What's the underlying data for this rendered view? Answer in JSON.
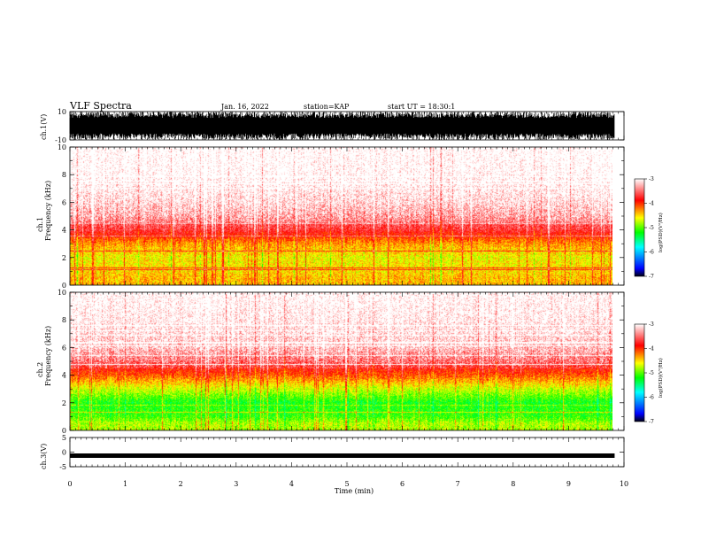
{
  "header": {
    "title": "VLF Spectra",
    "date": "Jan. 16, 2022",
    "station": "station=KAP",
    "start": "start UT = 18:30:1"
  },
  "chart_data": [
    {
      "type": "line",
      "panel": "ch1-waveform",
      "ylabel": "ch.1(V)",
      "y_ticks": [
        "10",
        "-10"
      ],
      "ylim": [
        -10,
        10
      ],
      "xlim": [
        0,
        10
      ],
      "data_xmax": 9.83,
      "description_values": "dense waveform saturating between -10 and 10 V"
    },
    {
      "type": "heatmap",
      "panel": "ch1-spectrogram",
      "ylabel": "ch.1 Frequency (kHz)",
      "y_ticks": [
        "0",
        "2",
        "4",
        "6",
        "8",
        "10"
      ],
      "ylim": [
        0,
        10
      ],
      "xlim": [
        0,
        10
      ],
      "data_xmax": 9.83,
      "band_profile_khz": [
        [
          0.5,
          -4.4
        ],
        [
          1,
          -4.5
        ],
        [
          2,
          -4.6
        ],
        [
          3,
          -4.3
        ],
        [
          4,
          -3.7
        ],
        [
          5,
          -3.4
        ],
        [
          6,
          -3.2
        ],
        [
          8,
          -3.0
        ],
        [
          10,
          -2.95
        ]
      ]
    },
    {
      "type": "heatmap",
      "panel": "ch2-spectrogram",
      "ylabel": "ch.2 Frequency (kHz)",
      "y_ticks": [
        "0",
        "2",
        "4",
        "6",
        "8",
        "10"
      ],
      "ylim": [
        0,
        10
      ],
      "xlim": [
        0,
        10
      ],
      "data_xmax": 9.83,
      "band_profile_khz": [
        [
          0.5,
          -4.8
        ],
        [
          1,
          -5.1
        ],
        [
          2,
          -5.2
        ],
        [
          3,
          -4.7
        ],
        [
          4,
          -4.1
        ],
        [
          5,
          -3.6
        ],
        [
          6,
          -3.3
        ],
        [
          8,
          -3.1
        ],
        [
          10,
          -3.0
        ]
      ]
    },
    {
      "type": "line",
      "panel": "ch3-waveform",
      "ylabel": "ch.3(V)",
      "y_ticks": [
        "5",
        "0",
        "-5"
      ],
      "ylim": [
        -5,
        5
      ],
      "xlim": [
        0,
        10
      ],
      "data_xmax": 9.83,
      "level": -1.2,
      "xlabel": "Time (min)",
      "x_ticks": [
        "0",
        "1",
        "2",
        "3",
        "4",
        "5",
        "6",
        "7",
        "8",
        "9",
        "10"
      ]
    }
  ],
  "colorbar": {
    "label": "log(PSD)(V²/Hz)",
    "ticks": [
      "-3",
      "-4",
      "-5",
      "-6",
      "-7"
    ],
    "range": [
      -7,
      -3
    ],
    "stops": [
      "#000000",
      "#0000ff",
      "#00ffff",
      "#00ff00",
      "#ffff00",
      "#ff0000",
      "#ffffff"
    ]
  }
}
